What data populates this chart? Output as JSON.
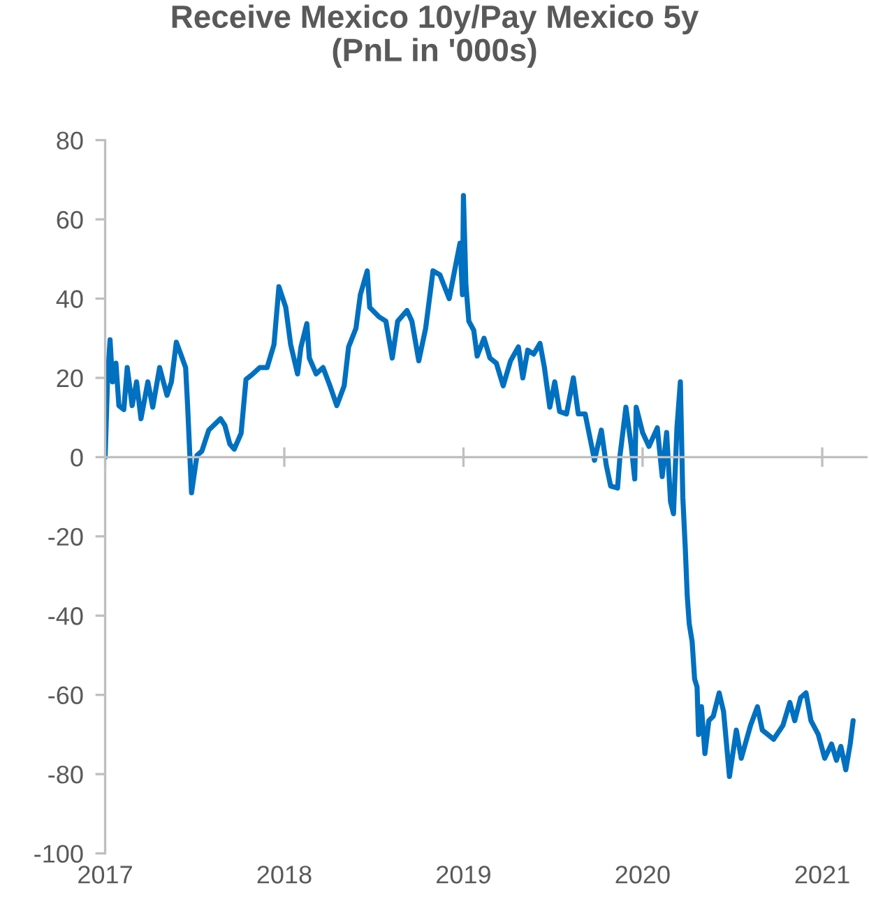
{
  "chart_data": {
    "type": "line",
    "title": "Receive Mexico 10y/Pay Mexico 5y\n(PnL in '000s)",
    "x": [
      "2017-01-01",
      "2017-01-06",
      "2017-01-11",
      "2017-01-16",
      "2017-01-23",
      "2017-01-29",
      "2017-02-08",
      "2017-02-15",
      "2017-02-25",
      "2017-03-06",
      "2017-03-15",
      "2017-03-29",
      "2017-04-08",
      "2017-04-22",
      "2017-05-07",
      "2017-05-16",
      "2017-05-26",
      "2017-06-04",
      "2017-06-14",
      "2017-06-18",
      "2017-06-26",
      "2017-07-07",
      "2017-07-17",
      "2017-07-31",
      "2017-08-24",
      "2017-09-02",
      "2017-09-12",
      "2017-09-21",
      "2017-10-05",
      "2017-10-15",
      "2017-10-29",
      "2017-11-12",
      "2017-11-27",
      "2017-12-11",
      "2017-12-21",
      "2018-01-04",
      "2018-01-14",
      "2018-01-28",
      "2018-02-04",
      "2018-02-16",
      "2018-02-21",
      "2018-03-07",
      "2018-03-21",
      "2018-04-04",
      "2018-04-18",
      "2018-05-03",
      "2018-05-12",
      "2018-05-27",
      "2018-06-05",
      "2018-06-19",
      "2018-06-24",
      "2018-07-13",
      "2018-07-27",
      "2018-08-09",
      "2018-08-20",
      "2018-09-08",
      "2018-09-18",
      "2018-10-02",
      "2018-10-16",
      "2018-10-31",
      "2018-11-14",
      "2018-12-03",
      "2018-12-17",
      "2018-12-25",
      "2018-12-30",
      "2019-01-01",
      "2019-01-06",
      "2019-01-12",
      "2019-01-22",
      "2019-01-29",
      "2019-02-12",
      "2019-02-24",
      "2019-03-09",
      "2019-03-23",
      "2019-04-07",
      "2019-04-23",
      "2019-05-02",
      "2019-05-12",
      "2019-05-24",
      "2019-06-06",
      "2019-06-15",
      "2019-06-26",
      "2019-07-06",
      "2019-07-16",
      "2019-07-30",
      "2019-08-13",
      "2019-08-23",
      "2019-09-06",
      "2019-09-25",
      "2019-10-09",
      "2019-10-19",
      "2019-10-28",
      "2019-11-11",
      "2019-11-16",
      "2019-11-28",
      "2019-12-09",
      "2019-12-16",
      "2019-12-19",
      "2020-01-01",
      "2020-01-14",
      "2020-01-31",
      "2020-02-10",
      "2020-02-19",
      "2020-02-27",
      "2020-03-04",
      "2020-03-11",
      "2020-03-18",
      "2020-03-23",
      "2020-03-28",
      "2020-04-01",
      "2020-04-05",
      "2020-04-11",
      "2020-04-16",
      "2020-04-21",
      "2020-04-24",
      "2020-04-30",
      "2020-05-07",
      "2020-05-15",
      "2020-05-24",
      "2020-06-05",
      "2020-06-14",
      "2020-06-26",
      "2020-07-10",
      "2020-07-20",
      "2020-08-08",
      "2020-08-22",
      "2020-09-01",
      "2020-09-24",
      "2020-10-13",
      "2020-10-27",
      "2020-11-06",
      "2020-11-18",
      "2020-11-29",
      "2020-12-09",
      "2020-12-24",
      "2021-01-06",
      "2021-01-20",
      "2021-01-30",
      "2021-02-08",
      "2021-02-18",
      "2021-02-27",
      "2021-03-05"
    ],
    "series": [
      {
        "color": "#0070c0",
        "values": [
          0,
          20,
          29.6,
          19,
          23.7,
          13,
          12,
          22.6,
          13,
          19,
          9.7,
          19,
          12.6,
          22.6,
          15.6,
          19,
          29,
          26,
          22.6,
          13,
          -9,
          0.4,
          1.5,
          6.8,
          9.7,
          8,
          3.3,
          2,
          6,
          19.6,
          21,
          22.6,
          22.6,
          28.4,
          43,
          37.8,
          28.4,
          21,
          27.8,
          33.7,
          25,
          21,
          22.6,
          18,
          13,
          18,
          27.8,
          32.5,
          41,
          47,
          37.8,
          35.4,
          34.3,
          25,
          34.3,
          37,
          34.3,
          24.3,
          32.5,
          47,
          46,
          40,
          49,
          54,
          41,
          66,
          43.6,
          34.3,
          32,
          25.5,
          30,
          25,
          23.7,
          18,
          24.3,
          27.8,
          20,
          27,
          26,
          28.7,
          22.6,
          12.6,
          19,
          11.5,
          10.9,
          20,
          10.9,
          10.9,
          -0.8,
          6.8,
          -2,
          -7.3,
          -7.8,
          0.4,
          12.6,
          2.7,
          -5.5,
          12.6,
          6.2,
          2.7,
          7.4,
          -4.9,
          6.2,
          -11.3,
          -14.3,
          7.4,
          19,
          -10.2,
          -23,
          -35,
          -42,
          -46.6,
          -56,
          -58,
          -70,
          -63,
          -74.8,
          -66.5,
          -65.4,
          -59.5,
          -64.2,
          -80.6,
          -68.9,
          -76,
          -67.7,
          -63,
          -68.9,
          -71.2,
          -67.7,
          -61.9,
          -66.5,
          -60.7,
          -59.5,
          -66.5,
          -70,
          -76,
          -72.4,
          -76.5,
          -73,
          -78.9,
          -72.4,
          -66.5
        ]
      }
    ],
    "xlim": [
      "2017-01-01",
      "2021-04-01"
    ],
    "xticks": [
      "2017",
      "2018",
      "2019",
      "2020",
      "2021"
    ],
    "ylim": [
      -100,
      80
    ],
    "yticks": [
      -100,
      -80,
      -60,
      -40,
      -20,
      0,
      20,
      40,
      60,
      80
    ],
    "legend": false,
    "line_style": "solid",
    "marker": "none"
  }
}
